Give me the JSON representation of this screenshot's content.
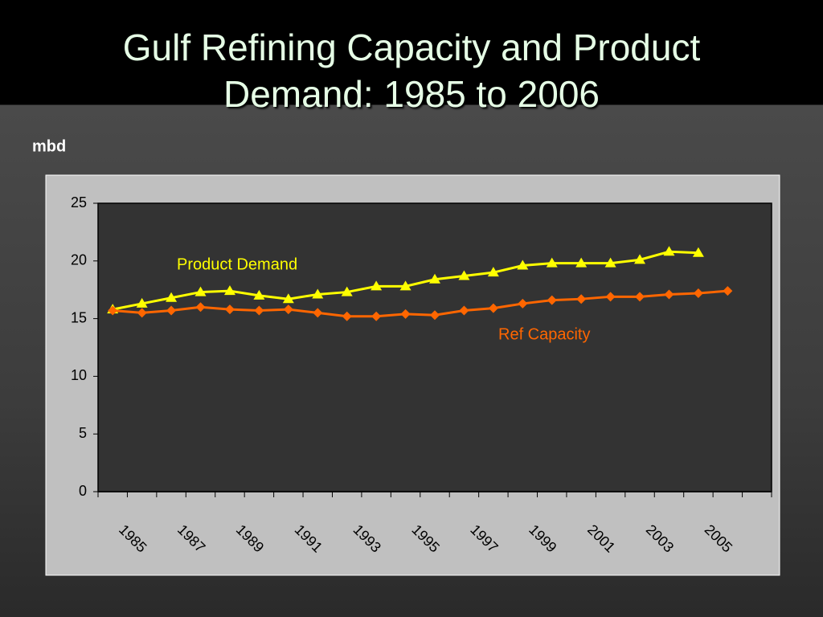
{
  "chart_data": {
    "type": "line",
    "title": "Gulf Refining Capacity and Product Demand: 1985 to 2006",
    "y_label": "mbd",
    "categories": [
      "1985",
      null,
      "1987",
      null,
      "1989",
      null,
      "1991",
      null,
      "1993",
      null,
      "1995",
      null,
      "1997",
      null,
      "1999",
      null,
      "2001",
      null,
      "2003",
      null,
      "2005",
      null,
      null
    ],
    "series": [
      {
        "name": "Product Demand",
        "color": "#ffff00",
        "marker": "triangle",
        "values": [
          15.8,
          16.3,
          16.8,
          17.3,
          17.4,
          17.0,
          16.7,
          17.1,
          17.3,
          17.8,
          17.8,
          18.4,
          18.7,
          19.0,
          19.6,
          19.8,
          19.8,
          19.8,
          20.1,
          20.8,
          20.7,
          null,
          null
        ]
      },
      {
        "name": "Ref Capacity",
        "color": "#ff6600",
        "marker": "diamond",
        "values": [
          15.7,
          15.5,
          15.7,
          16.0,
          15.8,
          15.7,
          15.8,
          15.5,
          15.2,
          15.2,
          15.4,
          15.3,
          15.7,
          15.9,
          16.3,
          16.6,
          16.7,
          16.9,
          16.9,
          17.1,
          17.2,
          17.4,
          null
        ]
      }
    ],
    "ylim": [
      0,
      25
    ],
    "yticks": [
      0,
      5,
      10,
      15,
      20,
      25
    ],
    "grid": false
  }
}
